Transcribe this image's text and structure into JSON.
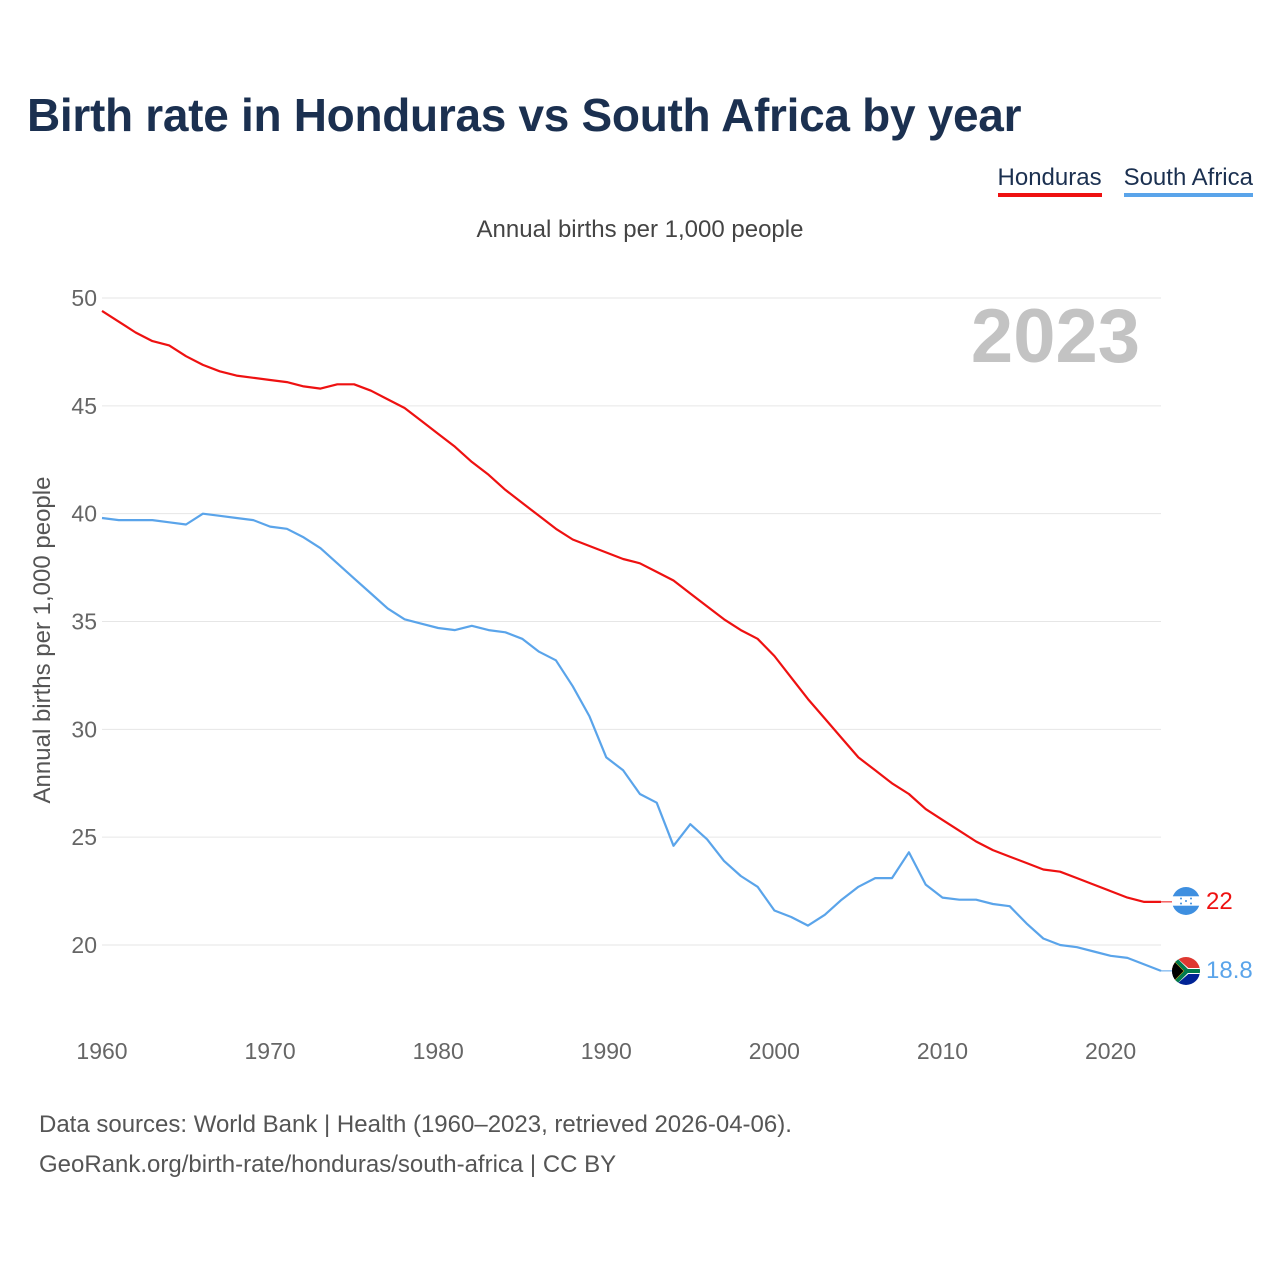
{
  "title": "Birth rate in Honduras vs South Africa by year",
  "legend": [
    {
      "label": "Honduras",
      "color": "#ee1111"
    },
    {
      "label": "South Africa",
      "color": "#5aa4ea"
    }
  ],
  "subtitle": "Annual births per 1,000 people",
  "footer": {
    "line1": "Data sources: World Bank | Health (1960–2023, retrieved 2026-04-06).",
    "line2": "GeoRank.org/birth-rate/honduras/south-africa | CC BY"
  },
  "chart_data": {
    "type": "line",
    "title": "Birth rate in Honduras vs South Africa by year",
    "ylabel": "Annual births per 1,000 people",
    "xlabel": "",
    "current_year": "2023",
    "xlim": [
      1960,
      2023
    ],
    "ylim": [
      17,
      50
    ],
    "y_ticks": [
      20,
      25,
      30,
      35,
      40,
      45,
      50
    ],
    "x_ticks": [
      1960,
      1970,
      1980,
      1990,
      2000,
      2010,
      2020
    ],
    "grid": true,
    "legend_position": "top-right",
    "x": [
      1960,
      1961,
      1962,
      1963,
      1964,
      1965,
      1966,
      1967,
      1968,
      1969,
      1970,
      1971,
      1972,
      1973,
      1974,
      1975,
      1976,
      1977,
      1978,
      1979,
      1980,
      1981,
      1982,
      1983,
      1984,
      1985,
      1986,
      1987,
      1988,
      1989,
      1990,
      1991,
      1992,
      1993,
      1994,
      1995,
      1996,
      1997,
      1998,
      1999,
      2000,
      2001,
      2002,
      2003,
      2004,
      2005,
      2006,
      2007,
      2008,
      2009,
      2010,
      2011,
      2012,
      2013,
      2014,
      2015,
      2016,
      2017,
      2018,
      2019,
      2020,
      2021,
      2022,
      2023
    ],
    "series": [
      {
        "name": "Honduras",
        "color": "#ee1111",
        "end_label": "22",
        "values": [
          49.4,
          48.9,
          48.4,
          48.0,
          47.8,
          47.3,
          46.9,
          46.6,
          46.4,
          46.3,
          46.2,
          46.1,
          45.9,
          45.8,
          46.0,
          46.0,
          45.7,
          45.3,
          44.9,
          44.3,
          43.7,
          43.1,
          42.4,
          41.8,
          41.1,
          40.5,
          39.9,
          39.3,
          38.8,
          38.5,
          38.2,
          37.9,
          37.7,
          37.3,
          36.9,
          36.3,
          35.7,
          35.1,
          34.6,
          34.2,
          33.4,
          32.4,
          31.4,
          30.5,
          29.6,
          28.7,
          28.1,
          27.5,
          27.0,
          26.3,
          25.8,
          25.3,
          24.8,
          24.4,
          24.1,
          23.8,
          23.5,
          23.4,
          23.1,
          22.8,
          22.5,
          22.2,
          22.0,
          22.0
        ]
      },
      {
        "name": "South Africa",
        "color": "#5aa4ea",
        "end_label": "18.8",
        "values": [
          39.8,
          39.7,
          39.7,
          39.7,
          39.6,
          39.5,
          40.0,
          39.9,
          39.8,
          39.7,
          39.4,
          39.3,
          38.9,
          38.4,
          37.7,
          37.0,
          36.3,
          35.6,
          35.1,
          34.9,
          34.7,
          34.6,
          34.8,
          34.6,
          34.5,
          34.2,
          33.6,
          33.2,
          32.0,
          30.6,
          28.7,
          28.1,
          27.0,
          26.6,
          24.6,
          25.6,
          24.9,
          23.9,
          23.2,
          22.7,
          21.6,
          21.3,
          20.9,
          21.4,
          22.1,
          22.7,
          23.1,
          23.1,
          24.3,
          22.8,
          22.2,
          22.1,
          22.1,
          21.9,
          21.8,
          21.0,
          20.3,
          20.0,
          19.9,
          19.7,
          19.5,
          19.4,
          19.1,
          18.8
        ]
      }
    ]
  }
}
